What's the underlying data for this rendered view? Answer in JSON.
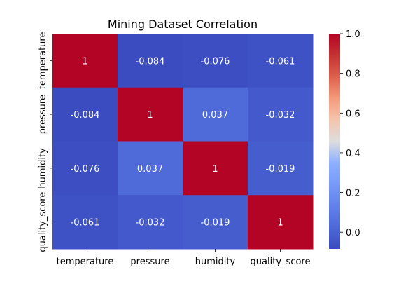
{
  "chart_data": {
    "type": "heatmap",
    "title": "Mining Dataset Correlation",
    "x_labels": [
      "temperature",
      "pressure",
      "humidity",
      "quality_score"
    ],
    "y_labels": [
      "temperature",
      "pressure",
      "humidity",
      "quality_score"
    ],
    "values": [
      [
        1,
        -0.084,
        -0.076,
        -0.061
      ],
      [
        -0.084,
        1,
        0.037,
        -0.032
      ],
      [
        -0.076,
        0.037,
        1,
        -0.019
      ],
      [
        -0.061,
        -0.032,
        -0.019,
        1
      ]
    ],
    "annotations": [
      [
        "1",
        "-0.084",
        "-0.076",
        "-0.061"
      ],
      [
        "-0.084",
        "1",
        "0.037",
        "-0.032"
      ],
      [
        "-0.076",
        "0.037",
        "1",
        "-0.019"
      ],
      [
        "-0.061",
        "-0.032",
        "-0.019",
        "1"
      ]
    ],
    "colormap": "coolwarm",
    "colorbar": {
      "range": [
        -0.084,
        1.0
      ],
      "ticks": [
        0.0,
        0.2,
        0.4,
        0.6,
        0.8,
        1.0
      ],
      "tick_labels": [
        "0.0",
        "0.2",
        "0.4",
        "0.6",
        "0.8",
        "1.0"
      ]
    }
  }
}
